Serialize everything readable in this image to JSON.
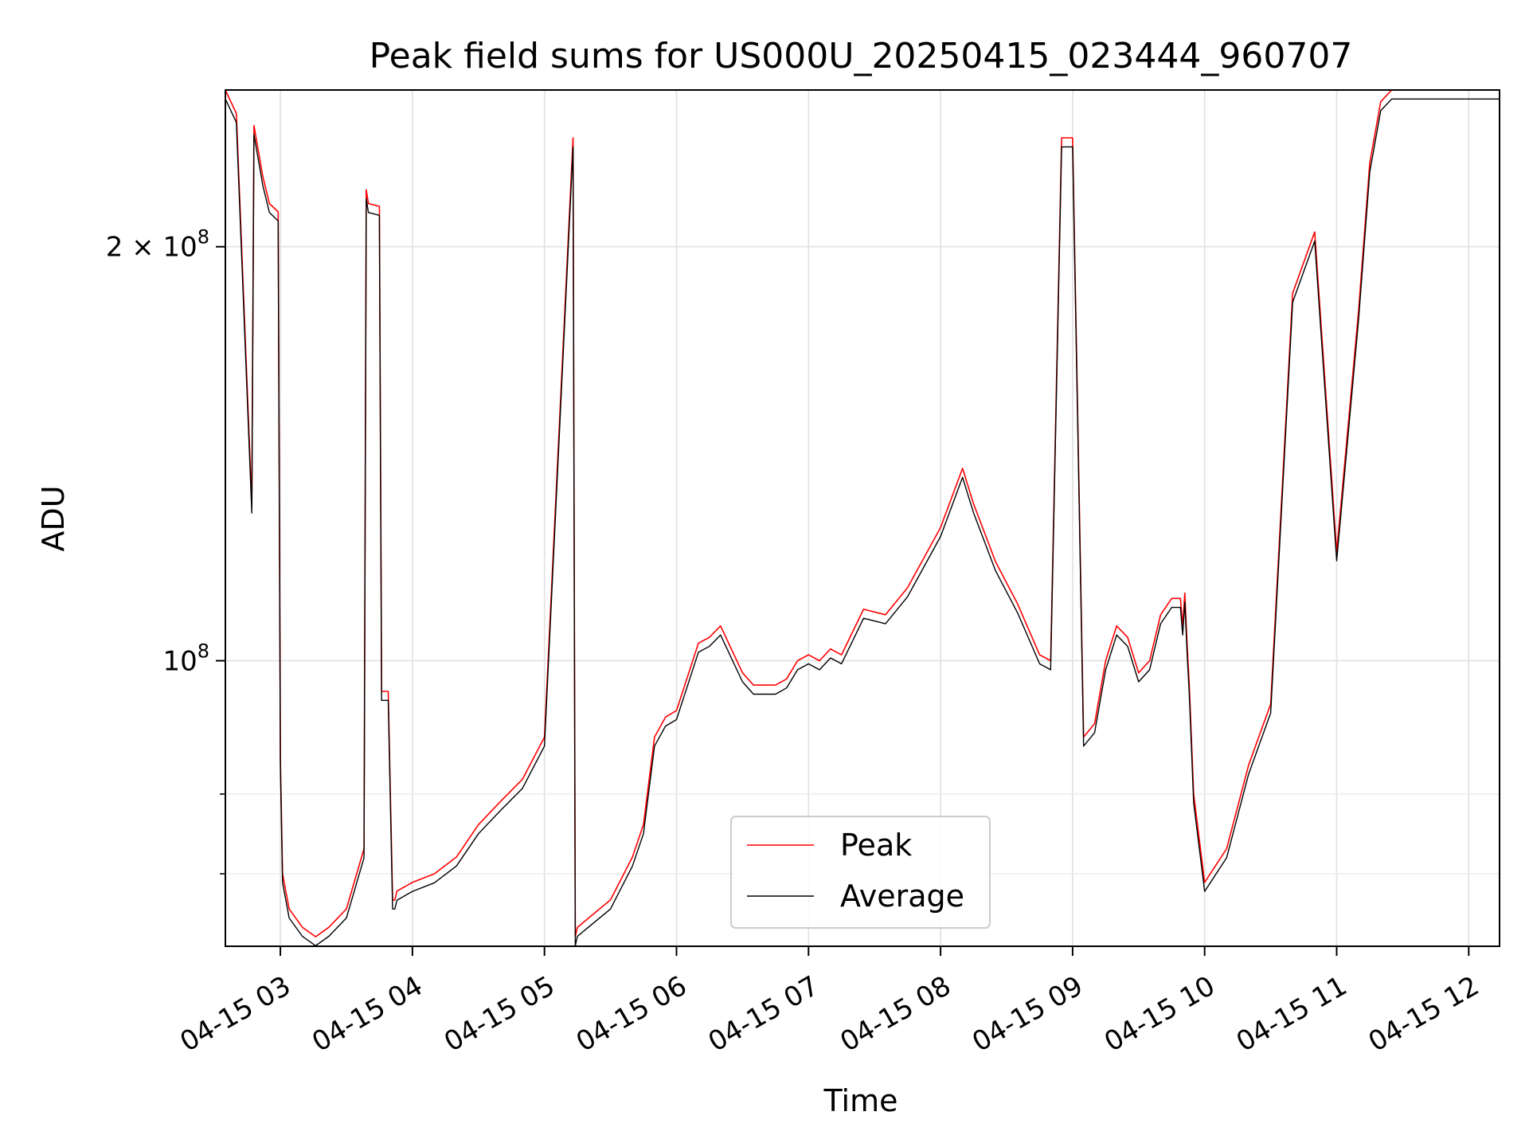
{
  "chart_data": {
    "type": "line",
    "title": "Peak field sums for US000U_20250415_023444_960707",
    "xlabel": "Time",
    "ylabel": "ADU",
    "y_scale": "log",
    "grid": true,
    "legend_position": "lower center",
    "xlim": [
      "2025-04-15 02:35",
      "2025-04-15 12:14"
    ],
    "ylim": [
      62000000,
      260000000
    ],
    "x_ticks": [
      "04-15 03",
      "04-15 04",
      "04-15 05",
      "04-15 06",
      "04-15 07",
      "04-15 08",
      "04-15 09",
      "04-15 10",
      "04-15 11",
      "04-15 12"
    ],
    "x_tick_times": [
      "2025-04-15 03:00",
      "2025-04-15 04:00",
      "2025-04-15 05:00",
      "2025-04-15 06:00",
      "2025-04-15 07:00",
      "2025-04-15 08:00",
      "2025-04-15 09:00",
      "2025-04-15 10:00",
      "2025-04-15 11:00",
      "2025-04-15 12:00"
    ],
    "y_major_ticks": [
      {
        "value": 100000000,
        "label_base": "10",
        "label_exp": "8"
      },
      {
        "value": 200000000,
        "label_base": "2 × 10",
        "label_exp": "8"
      }
    ],
    "y_minor_ticks": [
      70000000,
      80000000,
      300000000
    ],
    "series": [
      {
        "name": "Peak",
        "color": "#ff0000",
        "x": [
          "2025-04-15 02:35",
          "2025-04-15 02:40",
          "2025-04-15 02:47",
          "2025-04-15 02:48",
          "2025-04-15 02:52",
          "2025-04-15 02:55",
          "2025-04-15 02:59",
          "2025-04-15 03:00",
          "2025-04-15 03:01",
          "2025-04-15 03:04",
          "2025-04-15 03:10",
          "2025-04-15 03:16",
          "2025-04-15 03:22",
          "2025-04-15 03:30",
          "2025-04-15 03:38",
          "2025-04-15 03:39",
          "2025-04-15 03:40",
          "2025-04-15 03:45",
          "2025-04-15 03:46",
          "03:46:30",
          "2025-04-15 03:49",
          "2025-04-15 03:51",
          "2025-04-15 03:52",
          "2025-04-15 03:53",
          "2025-04-15 04:00",
          "2025-04-15 04:10",
          "2025-04-15 04:20",
          "2025-04-15 04:30",
          "2025-04-15 04:40",
          "2025-04-15 04:50",
          "2025-04-15 05:00",
          "2025-04-15 05:13",
          "2025-04-15 05:14",
          "2025-04-15 05:15",
          "2025-04-15 05:20",
          "2025-04-15 05:30",
          "2025-04-15 05:40",
          "2025-04-15 05:45",
          "2025-04-15 05:50",
          "2025-04-15 05:55",
          "2025-04-15 06:00",
          "2025-04-15 06:10",
          "2025-04-15 06:15",
          "2025-04-15 06:20",
          "2025-04-15 06:30",
          "2025-04-15 06:35",
          "2025-04-15 06:45",
          "2025-04-15 06:50",
          "2025-04-15 06:55",
          "2025-04-15 07:00",
          "2025-04-15 07:05",
          "2025-04-15 07:10",
          "2025-04-15 07:15",
          "2025-04-15 07:25",
          "2025-04-15 07:35",
          "2025-04-15 07:45",
          "2025-04-15 08:00",
          "2025-04-15 08:10",
          "2025-04-15 08:15",
          "2025-04-15 08:25",
          "2025-04-15 08:35",
          "2025-04-15 08:45",
          "2025-04-15 08:50",
          "2025-04-15 08:55",
          "2025-04-15 09:00",
          "2025-04-15 09:05",
          "2025-04-15 09:10",
          "2025-04-15 09:15",
          "2025-04-15 09:20",
          "2025-04-15 09:25",
          "2025-04-15 09:30",
          "2025-04-15 09:35",
          "2025-04-15 09:40",
          "2025-04-15 09:45",
          "2025-04-15 09:49",
          "2025-04-15 09:50",
          "2025-04-15 09:51",
          "2025-04-15 09:52",
          "2025-04-15 09:53",
          "2025-04-15 09:55",
          "2025-04-15 10:00",
          "2025-04-15 10:10",
          "2025-04-15 10:20",
          "2025-04-15 10:30",
          "2025-04-15 10:40",
          "2025-04-15 10:50",
          "2025-04-15 11:00",
          "2025-04-15 11:10",
          "2025-04-15 11:15",
          "2025-04-15 11:20",
          "2025-04-15 11:25",
          "2025-04-15 11:30",
          "2025-04-15 11:35",
          "2025-04-15 11:40",
          "2025-04-15 11:45",
          "2025-04-15 11:50",
          "2025-04-15 12:00",
          "2025-04-15 12:05",
          "2025-04-15 12:06",
          "2025-04-15 12:10",
          "2025-04-15 12:14"
        ],
        "y": [
          260000000,
          250000000,
          130000000,
          245000000,
          225000000,
          215000000,
          212000000,
          85000000,
          70000000,
          66000000,
          64000000,
          63000000,
          64000000,
          66000000,
          73000000,
          220000000,
          215000000,
          214000000,
          95000000,
          95000000,
          95000000,
          67000000,
          67000000,
          68000000,
          69000000,
          70000000,
          72000000,
          76000000,
          79000000,
          82000000,
          88000000,
          240000000,
          63000000,
          64000000,
          65000000,
          67000000,
          72000000,
          76000000,
          88000000,
          91000000,
          92000000,
          103000000,
          104000000,
          106000000,
          98000000,
          96000000,
          96000000,
          97000000,
          100000000,
          101000000,
          100000000,
          102000000,
          101000000,
          109000000,
          108000000,
          113000000,
          125000000,
          138000000,
          130000000,
          118000000,
          110000000,
          101000000,
          100000000,
          240000000,
          240000000,
          88000000,
          90000000,
          100000000,
          106000000,
          104000000,
          98000000,
          100000000,
          108000000,
          111000000,
          111000000,
          106000000,
          112000000,
          103000000,
          96000000,
          80000000,
          69000000,
          73000000,
          84000000,
          93000000,
          185000000,
          205000000,
          120000000,
          180000000,
          230000000,
          255000000,
          260000000,
          260000000,
          260000000,
          260000000,
          260000000,
          260000000,
          260000000,
          260000000,
          260000000,
          260000000,
          260000000
        ]
      },
      {
        "name": "Average",
        "color": "#000000",
        "x": [],
        "y": []
      }
    ]
  }
}
